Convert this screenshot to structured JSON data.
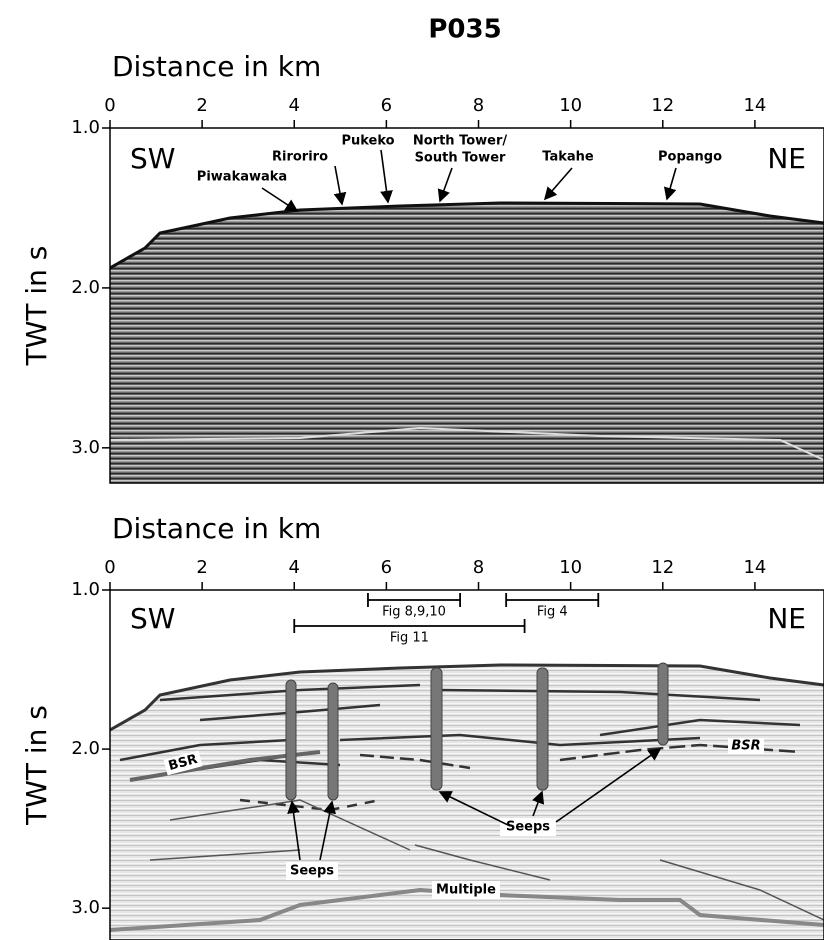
{
  "title": "P035",
  "panels": [
    {
      "x_label": "Distance in km",
      "y_label": "TWT in s",
      "xlim": [
        0,
        15.5
      ],
      "ylim": [
        1.0,
        3.22
      ],
      "xticks": [
        0,
        2,
        4,
        6,
        8,
        10,
        12,
        14
      ],
      "yticks": [
        {
          "value": 1,
          "label": "1.0"
        },
        {
          "value": 2,
          "label": "2.0"
        },
        {
          "value": 3,
          "label": "3.0"
        }
      ],
      "annotations": {
        "sw": "SW",
        "ne": "NE",
        "piwakawaka": "Piwakawaka",
        "riroriro": "Riroriro",
        "pukeko": "Pukeko",
        "north_tower": "North Tower/",
        "south_tower": "South Tower",
        "takahe": "Takahe",
        "popango": "Popango"
      }
    },
    {
      "x_label": "Distance in km",
      "y_label": "TWT in s",
      "xlim": [
        0,
        15.5
      ],
      "ylim": [
        1.0,
        3.2
      ],
      "xticks": [
        0,
        2,
        4,
        6,
        8,
        10,
        12,
        14
      ],
      "yticks": [
        {
          "value": 1,
          "label": "1.0"
        },
        {
          "value": 2,
          "label": "2.0"
        },
        {
          "value": 3,
          "label": "3.0"
        }
      ],
      "figure_ranges": [
        {
          "label": "Fig 8,9,10",
          "extent_km": [
            5.6,
            7.6
          ]
        },
        {
          "label": "Fig 4",
          "extent_km": [
            8.6,
            10.6
          ]
        },
        {
          "label": "Fig 11",
          "extent_km": [
            4,
            9
          ]
        }
      ],
      "annotations": {
        "sw": "SW",
        "ne": "NE",
        "bsr_left": "BSR",
        "bsr_right": "BSR",
        "seeps_left": "Seeps",
        "seeps_right": "Seeps",
        "multiple": "Multiple"
      }
    }
  ]
}
